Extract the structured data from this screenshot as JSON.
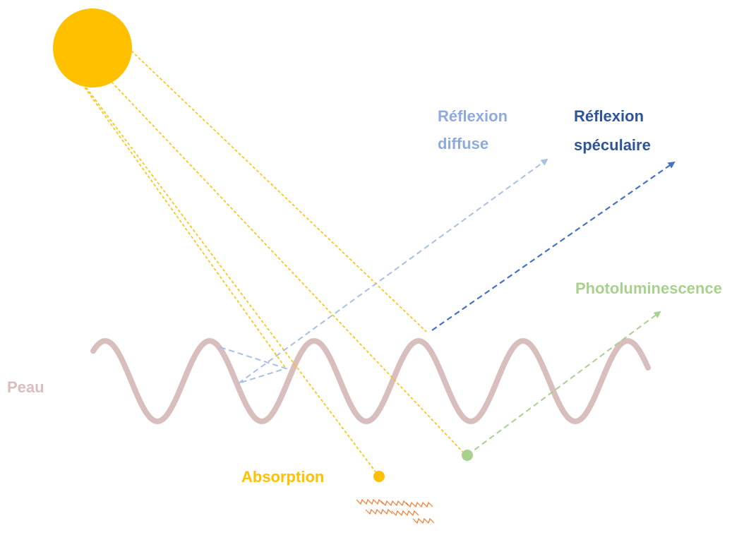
{
  "labels": {
    "diffuse": [
      "Réflexion",
      "diffuse"
    ],
    "specular": [
      "Réflexion",
      "spéculaire"
    ],
    "photoluminescence": "Photoluminescence",
    "skin": "Peau",
    "absorption": "Absorption"
  }
}
